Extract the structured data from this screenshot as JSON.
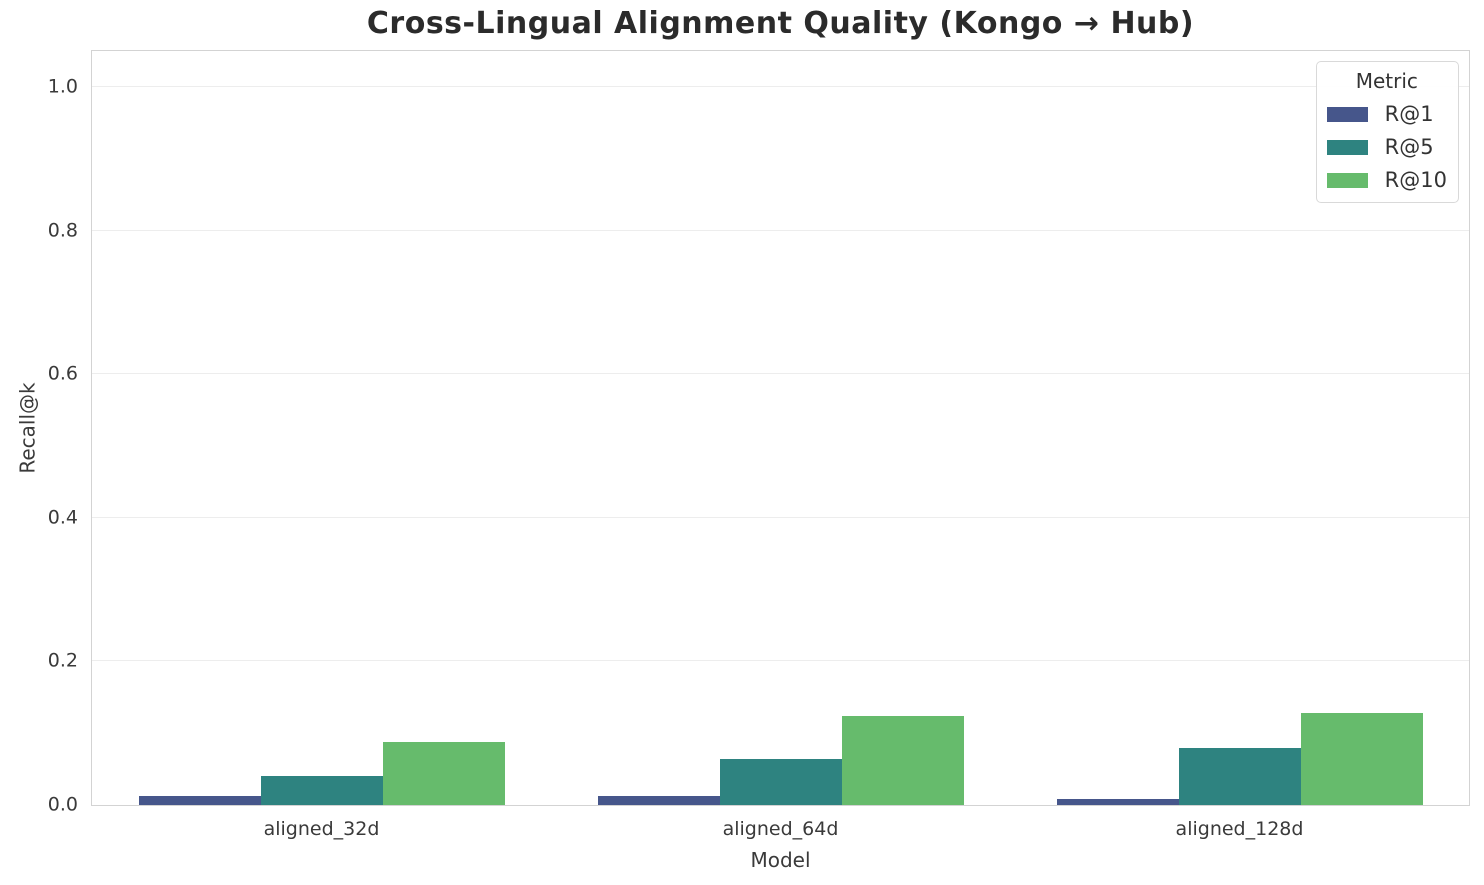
{
  "chart_data": {
    "type": "bar",
    "title": "Cross-Lingual Alignment Quality (Kongo → Hub)",
    "xlabel": "Model",
    "ylabel": "Recall@k",
    "categories": [
      "aligned_32d",
      "aligned_64d",
      "aligned_128d"
    ],
    "series": [
      {
        "name": "R@1",
        "color": "#46568b",
        "values": [
          0.013,
          0.012,
          0.008
        ]
      },
      {
        "name": "R@5",
        "color": "#2e8380",
        "values": [
          0.041,
          0.064,
          0.08
        ]
      },
      {
        "name": "R@10",
        "color": "#66bb6c",
        "values": [
          0.088,
          0.124,
          0.128
        ]
      }
    ],
    "legend": {
      "title": "Metric",
      "position": "upper right"
    },
    "ylim": [
      0,
      1.05
    ],
    "yticks": [
      0.0,
      0.2,
      0.4,
      0.6,
      0.8,
      1.0
    ],
    "ytick_labels": [
      "0.0",
      "0.2",
      "0.4",
      "0.6",
      "0.8",
      "1.0"
    ],
    "grid": true
  },
  "style": {
    "background": "#ffffff",
    "grid_color": "#ededed",
    "spine_color": "#d3d3d3",
    "text_color": "#3a3a3a",
    "title_color": "#2b2b2b"
  }
}
